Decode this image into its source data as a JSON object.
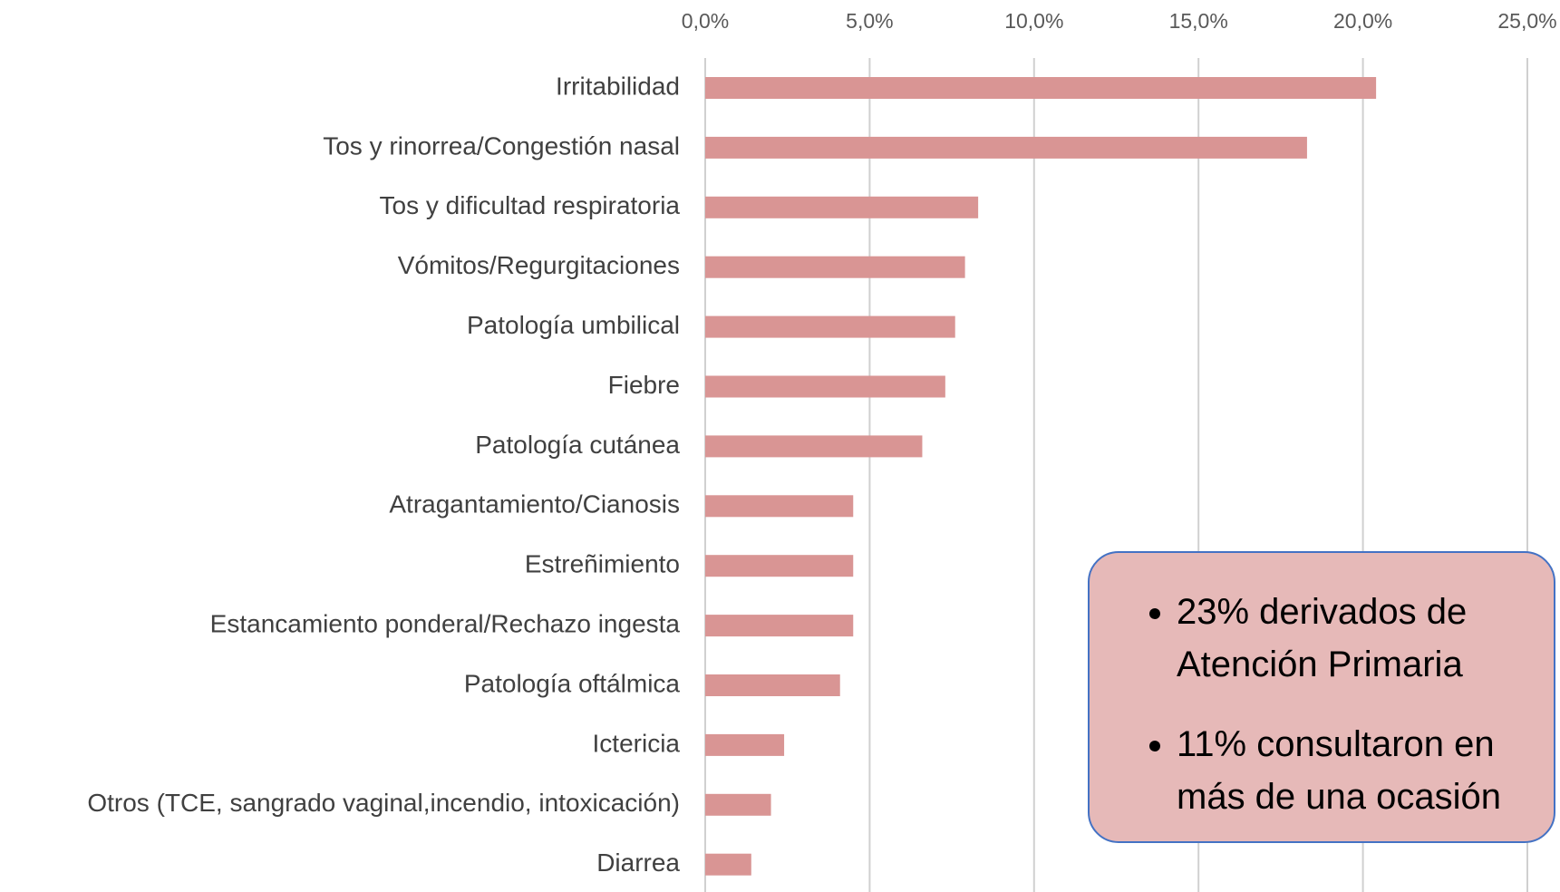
{
  "chart_data": {
    "type": "bar",
    "orientation": "horizontal",
    "categories": [
      "Irritabilidad",
      "Tos y rinorrea/Congestión nasal",
      "Tos y dificultad respiratoria",
      "Vómitos/Regurgitaciones",
      "Patología umbilical",
      "Fiebre",
      "Patología cutánea",
      "Atragantamiento/Cianosis",
      "Estreñimiento",
      "Estancamiento ponderal/Rechazo ingesta",
      "Patología oftálmica",
      "Ictericia",
      "Otros (TCE, sangrado vaginal,incendio, intoxicación)",
      "Diarrea"
    ],
    "values": [
      20.4,
      18.3,
      8.3,
      7.9,
      7.6,
      7.3,
      6.6,
      4.5,
      4.5,
      4.5,
      4.1,
      2.4,
      2.0,
      1.4
    ],
    "color": "#d99594",
    "xlim": [
      0,
      25
    ],
    "xticks": [
      {
        "value": 0,
        "label": "0,0%"
      },
      {
        "value": 5,
        "label": "5,0%"
      },
      {
        "value": 10,
        "label": "10,0%"
      },
      {
        "value": 15,
        "label": "15,0%"
      },
      {
        "value": 20,
        "label": "20,0%"
      },
      {
        "value": 25,
        "label": "25,0%"
      }
    ],
    "grid": true,
    "annotations": [
      "23% derivados de Atención Primaria",
      "11% consultaron en más de una ocasión"
    ]
  }
}
